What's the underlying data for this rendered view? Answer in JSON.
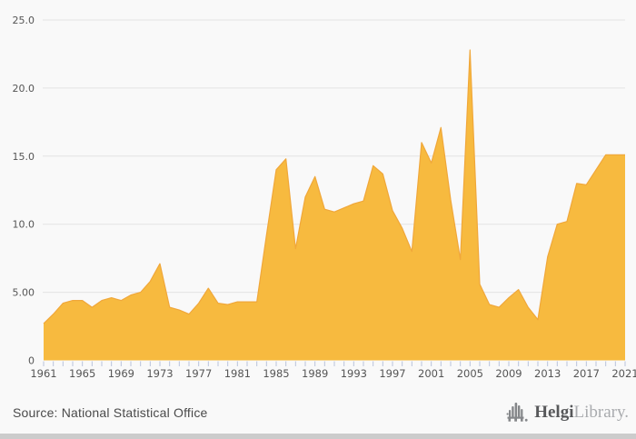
{
  "chart_data": {
    "type": "area",
    "title": "",
    "xlabel": "",
    "ylabel": "",
    "ylim": [
      0,
      25
    ],
    "grid": true,
    "legend": false,
    "years": [
      1961,
      1962,
      1963,
      1964,
      1965,
      1966,
      1967,
      1968,
      1969,
      1970,
      1971,
      1972,
      1973,
      1974,
      1975,
      1976,
      1977,
      1978,
      1979,
      1980,
      1981,
      1982,
      1983,
      1984,
      1985,
      1986,
      1987,
      1988,
      1989,
      1990,
      1991,
      1992,
      1993,
      1994,
      1995,
      1996,
      1997,
      1998,
      1999,
      2000,
      2001,
      2002,
      2003,
      2004,
      2005,
      2006,
      2007,
      2008,
      2009,
      2010,
      2011,
      2012,
      2013,
      2014,
      2015,
      2016,
      2017,
      2018,
      2019,
      2020,
      2021
    ],
    "values": [
      2.7,
      3.4,
      4.2,
      4.4,
      4.4,
      3.9,
      4.4,
      4.6,
      4.4,
      4.8,
      5.0,
      5.8,
      7.1,
      3.9,
      3.7,
      3.4,
      4.2,
      5.3,
      4.2,
      4.1,
      4.3,
      4.3,
      4.3,
      9.2,
      14.0,
      14.8,
      8.2,
      12.0,
      13.5,
      11.1,
      10.9,
      11.2,
      11.5,
      11.7,
      14.3,
      13.7,
      11.0,
      9.7,
      8.0,
      16.0,
      14.5,
      17.1,
      11.8,
      7.4,
      22.8,
      5.6,
      4.1,
      3.9,
      4.6,
      5.2,
      3.9,
      3.0,
      7.6,
      10.0,
      10.2,
      13.0,
      12.9,
      14.0,
      15.1,
      15.1,
      15.1
    ],
    "yticks": [
      {
        "value": 0,
        "label": "0",
        "grid": false
      },
      {
        "value": 5,
        "label": "5.00",
        "grid": true
      },
      {
        "value": 10,
        "label": "10.0",
        "grid": true
      },
      {
        "value": 15,
        "label": "15.0",
        "grid": true
      },
      {
        "value": 20,
        "label": "20.0",
        "grid": true
      },
      {
        "value": 25,
        "label": "25.0",
        "grid": true
      }
    ],
    "xtick_labels": [
      "1961",
      "1965",
      "1969",
      "1973",
      "1977",
      "1981",
      "1985",
      "1989",
      "1993",
      "1997",
      "2001",
      "2005",
      "2009",
      "2013",
      "2017",
      "2021"
    ],
    "colors": {
      "area_fill": "#f7ba3f",
      "area_edge": "#f0a73a",
      "grid_line": "#e3e3e3",
      "tick_mark": "#b9c3dc",
      "axis_label": "#555555",
      "background": "#f9f9f9"
    }
  },
  "footer": {
    "source_label": "Source: National Statistical Office",
    "brand": {
      "name_bold": "Helgi",
      "name_light": "Library."
    }
  }
}
